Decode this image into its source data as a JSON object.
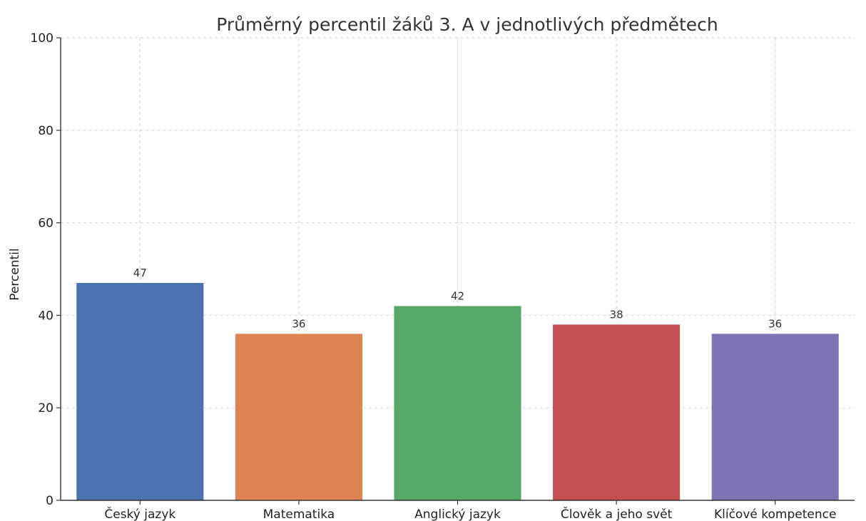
{
  "chart_data": {
    "type": "bar",
    "title": "Průměrný percentil žáků 3. A v jednotlivých předmětech",
    "xlabel": "",
    "ylabel": "Percentil",
    "categories": [
      "Český jazyk",
      "Matematika",
      "Anglický jazyk",
      "Člověk a jeho svět",
      "Klíčové kompetence"
    ],
    "values": [
      47,
      36,
      42,
      38,
      36
    ],
    "data_labels": [
      "47",
      "36",
      "42",
      "38",
      "36"
    ],
    "ylim": [
      0,
      100
    ],
    "yticks": [
      0,
      20,
      40,
      60,
      80,
      100
    ],
    "ytick_labels": [
      "0",
      "20",
      "40",
      "60",
      "80",
      "100"
    ],
    "grid": true,
    "legend": "none",
    "colors": [
      "#4c72b0",
      "#dd8452",
      "#55a868",
      "#c44e52",
      "#8172b3"
    ]
  }
}
